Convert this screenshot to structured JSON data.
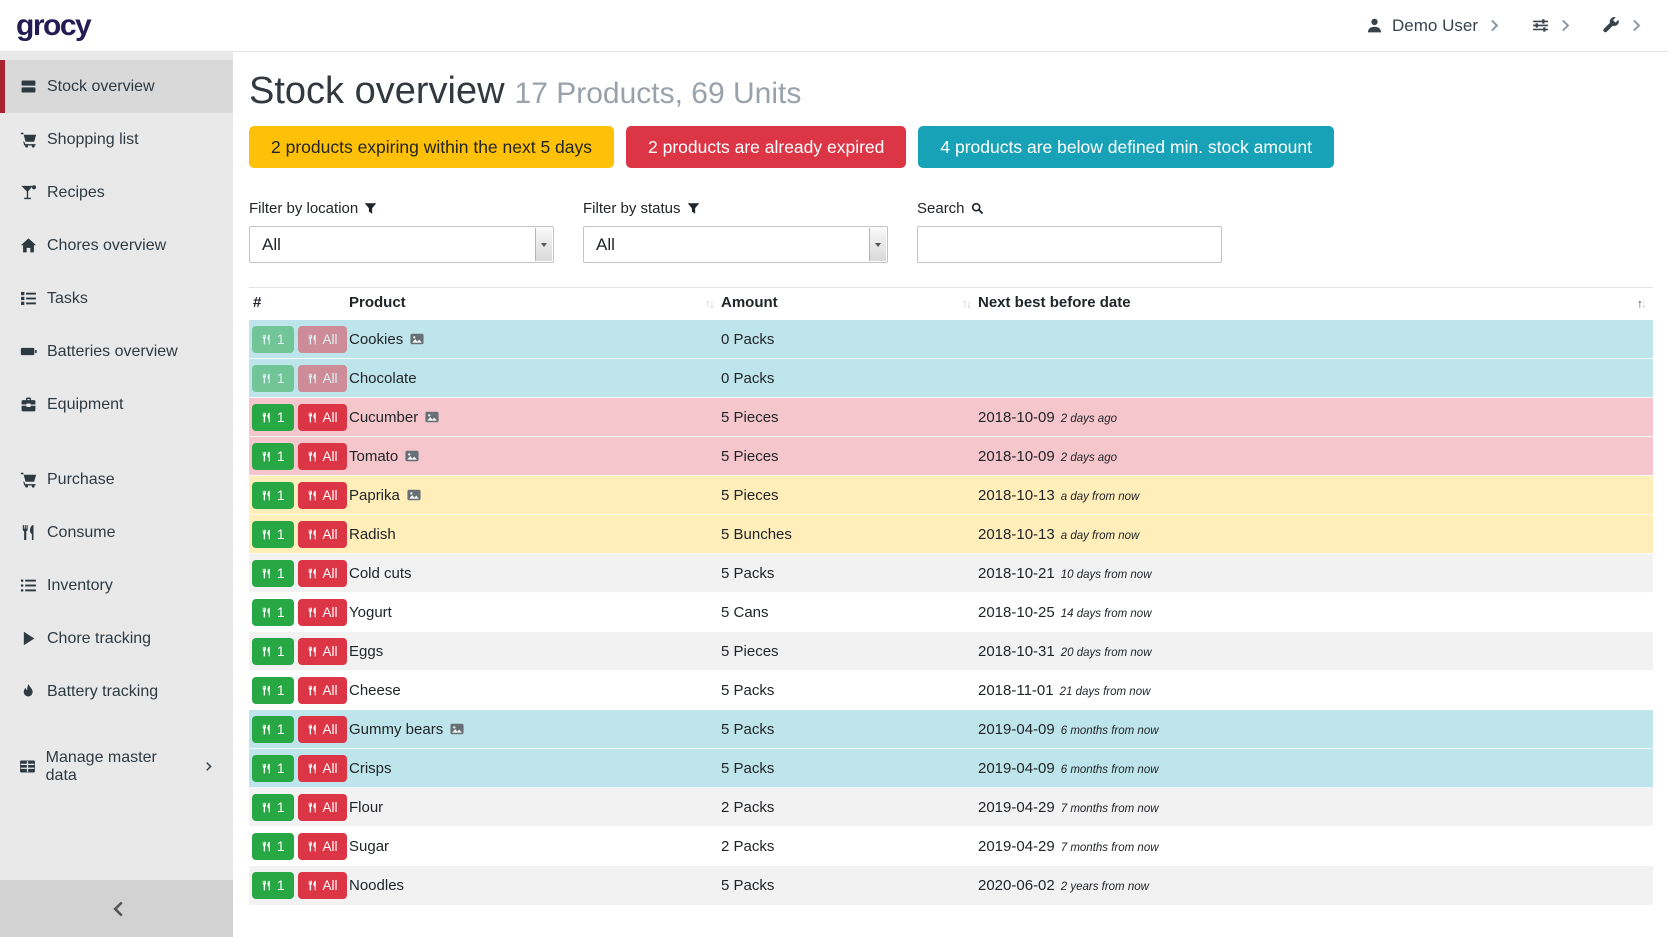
{
  "header": {
    "logo": "grocy",
    "user_label": "Demo User"
  },
  "sidebar": {
    "items": [
      {
        "label": "Stock overview",
        "icon": "boxes",
        "active": true
      },
      {
        "label": "Shopping list",
        "icon": "cart"
      },
      {
        "label": "Recipes",
        "icon": "cocktail"
      },
      {
        "label": "Chores overview",
        "icon": "home"
      },
      {
        "label": "Tasks",
        "icon": "tasks"
      },
      {
        "label": "Batteries overview",
        "icon": "battery"
      },
      {
        "label": "Equipment",
        "icon": "toolbox"
      },
      {
        "label": "Purchase",
        "icon": "cart",
        "gap": true
      },
      {
        "label": "Consume",
        "icon": "utensils"
      },
      {
        "label": "Inventory",
        "icon": "list"
      },
      {
        "label": "Chore tracking",
        "icon": "play"
      },
      {
        "label": "Battery tracking",
        "icon": "fire"
      },
      {
        "label": "Manage master data",
        "icon": "table",
        "gap": true,
        "chevron": true
      }
    ]
  },
  "page": {
    "title": "Stock overview",
    "subtitle": "17 Products, 69 Units",
    "alerts": [
      {
        "name": "expiring-alert",
        "text": "2 products expiring within the next 5 days",
        "bg": "#ffc107",
        "fg": "#212529"
      },
      {
        "name": "expired-alert",
        "text": "2 products are already expired",
        "bg": "#dc3545",
        "fg": "#ffffff"
      },
      {
        "name": "min-stock-alert",
        "text": "4 products are below defined min. stock amount",
        "bg": "#17a2b8",
        "fg": "#ffffff"
      }
    ]
  },
  "filters": {
    "location": {
      "label": "Filter by location",
      "value": "All"
    },
    "status": {
      "label": "Filter by status",
      "value": "All"
    },
    "search": {
      "label": "Search",
      "value": "",
      "placeholder": ""
    }
  },
  "table": {
    "columns": [
      {
        "label": "#",
        "sortable": false
      },
      {
        "label": "Product",
        "sortable": true,
        "sort": "none"
      },
      {
        "label": "Amount",
        "sortable": true,
        "sort": "none"
      },
      {
        "label": "Next best before date",
        "sortable": true,
        "sort": "asc"
      }
    ],
    "consume_one_label": "1",
    "consume_all_label": "All",
    "rows": [
      {
        "product": "Cookies",
        "has_image": true,
        "amount": "0 Packs",
        "date": "",
        "date_relative": "",
        "status": "info",
        "disabled": true
      },
      {
        "product": "Chocolate",
        "has_image": false,
        "amount": "0 Packs",
        "date": "",
        "date_relative": "",
        "status": "info",
        "disabled": true
      },
      {
        "product": "Cucumber",
        "has_image": true,
        "amount": "5 Pieces",
        "date": "2018-10-09",
        "date_relative": "2 days ago",
        "status": "danger",
        "disabled": false
      },
      {
        "product": "Tomato",
        "has_image": true,
        "amount": "5 Pieces",
        "date": "2018-10-09",
        "date_relative": "2 days ago",
        "status": "danger",
        "disabled": false
      },
      {
        "product": "Paprika",
        "has_image": true,
        "amount": "5 Pieces",
        "date": "2018-10-13",
        "date_relative": "a day from now",
        "status": "warning",
        "disabled": false
      },
      {
        "product": "Radish",
        "has_image": false,
        "amount": "5 Bunches",
        "date": "2018-10-13",
        "date_relative": "a day from now",
        "status": "warning",
        "disabled": false
      },
      {
        "product": "Cold cuts",
        "has_image": false,
        "amount": "5 Packs",
        "date": "2018-10-21",
        "date_relative": "10 days from now",
        "status": "",
        "disabled": false
      },
      {
        "product": "Yogurt",
        "has_image": false,
        "amount": "5 Cans",
        "date": "2018-10-25",
        "date_relative": "14 days from now",
        "status": "",
        "disabled": false
      },
      {
        "product": "Eggs",
        "has_image": false,
        "amount": "5 Pieces",
        "date": "2018-10-31",
        "date_relative": "20 days from now",
        "status": "",
        "disabled": false
      },
      {
        "product": "Cheese",
        "has_image": false,
        "amount": "5 Packs",
        "date": "2018-11-01",
        "date_relative": "21 days from now",
        "status": "",
        "disabled": false
      },
      {
        "product": "Gummy bears",
        "has_image": true,
        "amount": "5 Packs",
        "date": "2019-04-09",
        "date_relative": "6 months from now",
        "status": "info",
        "disabled": false
      },
      {
        "product": "Crisps",
        "has_image": false,
        "amount": "5 Packs",
        "date": "2019-04-09",
        "date_relative": "6 months from now",
        "status": "info",
        "disabled": false
      },
      {
        "product": "Flour",
        "has_image": false,
        "amount": "2 Packs",
        "date": "2019-04-29",
        "date_relative": "7 months from now",
        "status": "",
        "disabled": false
      },
      {
        "product": "Sugar",
        "has_image": false,
        "amount": "2 Packs",
        "date": "2019-04-29",
        "date_relative": "7 months from now",
        "status": "",
        "disabled": false
      },
      {
        "product": "Noodles",
        "has_image": false,
        "amount": "5 Packs",
        "date": "2020-06-02",
        "date_relative": "2 years from now",
        "status": "",
        "disabled": false
      }
    ]
  },
  "colors": {
    "success_green": "#28a745",
    "danger_red": "#dc3545",
    "warning_yellow": "#ffc107",
    "info_teal": "#17a2b8",
    "row_info": "#bee5eb",
    "row_danger": "#f5c6cb",
    "row_warning": "#ffeeba",
    "sidebar_active_border": "#a82330",
    "logo_color": "#241c54"
  }
}
